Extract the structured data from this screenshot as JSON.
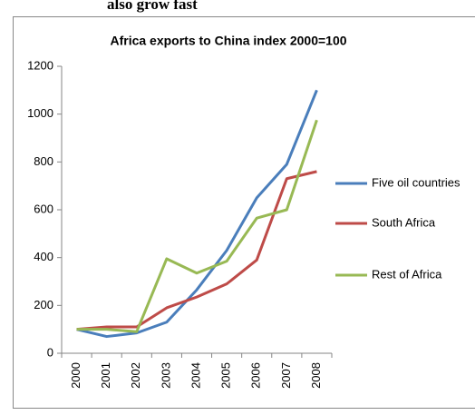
{
  "heading": "also grow fast",
  "chart_data": {
    "type": "line",
    "title": "Africa exports to China index 2000=100",
    "categories": [
      "2000",
      "2001",
      "2002",
      "2003",
      "2004",
      "2005",
      "2006",
      "2007",
      "2008"
    ],
    "series": [
      {
        "name": "Five oil countries",
        "color": "#4a7ebb",
        "values": [
          100,
          70,
          85,
          130,
          265,
          430,
          650,
          790,
          1100
        ]
      },
      {
        "name": "South Africa",
        "color": "#be4b48",
        "values": [
          100,
          110,
          110,
          190,
          235,
          290,
          390,
          730,
          760
        ]
      },
      {
        "name": "Rest of Africa",
        "color": "#98b954",
        "values": [
          100,
          100,
          90,
          395,
          335,
          385,
          565,
          600,
          975
        ]
      }
    ],
    "ylim": [
      0,
      1200
    ],
    "yticks": [
      0,
      200,
      400,
      600,
      800,
      1000,
      1200
    ],
    "legend": "right"
  }
}
